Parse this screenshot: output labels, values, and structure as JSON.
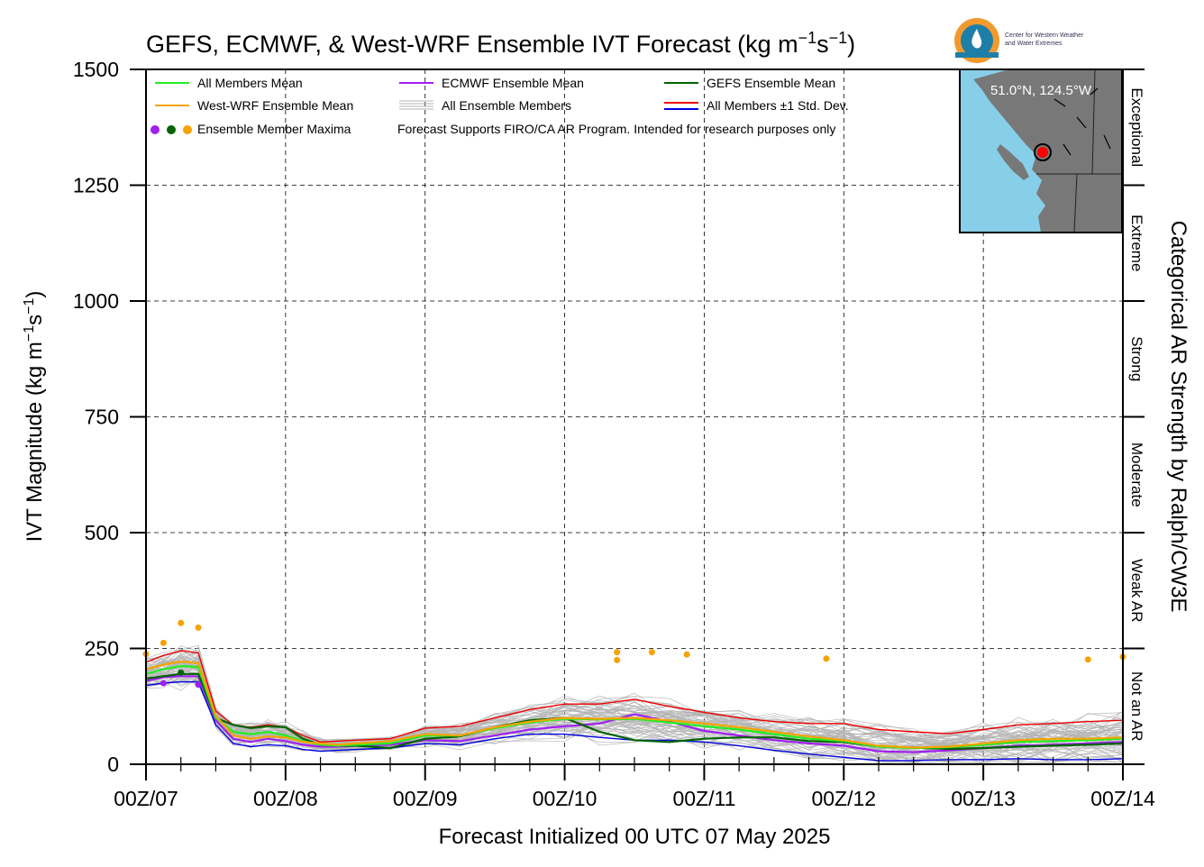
{
  "title_prefix": "GEFS, ECMWF, & West-WRF Ensemble IVT Forecast (kg m",
  "title_sup1": "−1",
  "title_mid": "s",
  "title_sup2": "−1",
  "title_suffix": ")",
  "logo": {
    "line1": "Center for Western Weather",
    "line2": "and Water Extremes"
  },
  "map": {
    "coords": "51.0°N, 124.5°W",
    "water_color": "#87cfe9",
    "land_color": "#787878",
    "marker_color": "#ff0000"
  },
  "note": "Forecast Supports FIRO/CA AR Program. Intended for research purposes only",
  "colors": {
    "all_mean": "#22ee22",
    "westwrf_mean": "#f5a300",
    "ecmwf_mean": "#a020f0",
    "gefs_mean": "#006400",
    "members": "#b4b4b4",
    "std_upper": "#ee0000",
    "std_lower": "#0000dd",
    "max_ecmwf": "#a020f0",
    "max_gefs": "#006400",
    "max_westwrf": "#f5a300"
  },
  "chart_data": {
    "type": "line",
    "xlabel": "Forecast Initialized 00 UTC 07 May 2025",
    "ylabel_prefix": "IVT Magnitude (kg m",
    "ylabel_sup1": "−1",
    "ylabel_mid": "s",
    "ylabel_sup2": "−1",
    "ylabel_suffix": ")",
    "right_axis_label": "Categorical AR Strength by Ralph/CW3E",
    "xlim": [
      0,
      168
    ],
    "ylim": [
      0,
      1500
    ],
    "x_ticks": [
      {
        "hour": 0,
        "label": "00Z/07"
      },
      {
        "hour": 24,
        "label": "00Z/08"
      },
      {
        "hour": 48,
        "label": "00Z/09"
      },
      {
        "hour": 72,
        "label": "00Z/10"
      },
      {
        "hour": 96,
        "label": "00Z/11"
      },
      {
        "hour": 120,
        "label": "00Z/12"
      },
      {
        "hour": 144,
        "label": "00Z/13"
      },
      {
        "hour": 168,
        "label": "00Z/14"
      }
    ],
    "y_ticks": [
      0,
      250,
      500,
      750,
      1000,
      1250,
      1500
    ],
    "grid": true,
    "legend_position": "top-left",
    "legend": [
      {
        "key": "all_mean",
        "label": "All Members Mean"
      },
      {
        "key": "ecmwf_mean",
        "label": "ECMWF Ensemble Mean"
      },
      {
        "key": "gefs_mean",
        "label": "GEFS Ensemble Mean"
      },
      {
        "key": "westwrf_mean",
        "label": "West-WRF Ensemble Mean"
      },
      {
        "key": "members",
        "label": "All Ensemble Members"
      },
      {
        "key": "std",
        "label": "All Members ±1 Std. Dev."
      },
      {
        "key": "maxima",
        "label": "Ensemble Member Maxima"
      }
    ],
    "categories_right": [
      {
        "label": "Not an AR",
        "range": [
          0,
          250
        ]
      },
      {
        "label": "Weak AR",
        "range": [
          250,
          500
        ]
      },
      {
        "label": "Moderate",
        "range": [
          500,
          750
        ]
      },
      {
        "label": "Strong",
        "range": [
          750,
          1000
        ]
      },
      {
        "label": "Extreme",
        "range": [
          1000,
          1250
        ]
      },
      {
        "label": "Exceptional",
        "range": [
          1250,
          1500
        ]
      }
    ],
    "series": [
      {
        "name": "All Members Mean",
        "key": "all_mean",
        "x": [
          0,
          3,
          6,
          9,
          12,
          15,
          18,
          21,
          24,
          27,
          30,
          33,
          36,
          42,
          48,
          54,
          60,
          66,
          72,
          78,
          84,
          90,
          96,
          102,
          108,
          114,
          120,
          126,
          132,
          138,
          144,
          150,
          156,
          162,
          168
        ],
        "y": [
          195,
          205,
          212,
          210,
          100,
          70,
          65,
          70,
          62,
          50,
          42,
          40,
          42,
          45,
          62,
          62,
          78,
          90,
          98,
          97,
          98,
          90,
          82,
          75,
          65,
          55,
          50,
          38,
          35,
          37,
          42,
          48,
          50,
          52,
          55
        ]
      },
      {
        "name": "ECMWF Ensemble Mean",
        "key": "ecmwf_mean",
        "x": [
          0,
          3,
          6,
          9,
          12,
          15,
          18,
          21,
          24,
          27,
          30,
          33,
          36,
          42,
          48,
          54,
          60,
          66,
          72,
          78,
          84,
          90,
          96,
          102,
          108,
          114,
          120,
          126,
          132,
          138,
          144,
          150,
          156,
          162,
          168
        ],
        "y": [
          180,
          188,
          190,
          190,
          95,
          55,
          48,
          55,
          50,
          42,
          38,
          38,
          40,
          42,
          52,
          50,
          62,
          75,
          82,
          88,
          108,
          92,
          72,
          62,
          52,
          45,
          40,
          28,
          26,
          30,
          35,
          40,
          42,
          45,
          48
        ]
      },
      {
        "name": "GEFS Ensemble Mean",
        "key": "gefs_mean",
        "x": [
          0,
          3,
          6,
          9,
          12,
          15,
          18,
          21,
          24,
          27,
          30,
          33,
          36,
          42,
          48,
          54,
          60,
          66,
          72,
          78,
          84,
          90,
          96,
          102,
          108,
          114,
          120,
          126,
          132,
          138,
          144,
          150,
          156,
          162,
          168
        ],
        "y": [
          185,
          190,
          195,
          195,
          100,
          85,
          78,
          82,
          80,
          55,
          42,
          40,
          40,
          35,
          55,
          60,
          80,
          95,
          100,
          70,
          52,
          48,
          55,
          58,
          58,
          50,
          48,
          38,
          36,
          33,
          35,
          38,
          40,
          42,
          45
        ]
      },
      {
        "name": "West-WRF Ensemble Mean",
        "key": "westwrf_mean",
        "x": [
          0,
          3,
          6,
          9,
          12,
          15,
          18,
          21,
          24,
          27,
          30,
          33,
          36,
          42,
          48,
          54,
          60,
          66,
          72,
          78,
          84,
          90,
          96,
          102,
          108,
          114,
          120,
          126,
          132,
          138,
          144,
          150,
          156,
          162,
          168
        ],
        "y": [
          205,
          215,
          222,
          218,
          105,
          62,
          55,
          60,
          58,
          48,
          45,
          42,
          45,
          50,
          65,
          62,
          80,
          92,
          100,
          98,
          100,
          95,
          88,
          80,
          70,
          60,
          52,
          40,
          36,
          38,
          45,
          52,
          55,
          55,
          58
        ]
      },
      {
        "name": "All Members +1 Std. Dev.",
        "key": "std_upper",
        "x": [
          0,
          3,
          6,
          9,
          12,
          15,
          18,
          21,
          24,
          27,
          30,
          33,
          36,
          42,
          48,
          54,
          60,
          66,
          72,
          78,
          84,
          90,
          96,
          102,
          108,
          114,
          120,
          126,
          132,
          138,
          144,
          150,
          156,
          162,
          168
        ],
        "y": [
          220,
          235,
          245,
          240,
          115,
          85,
          80,
          85,
          80,
          62,
          48,
          50,
          52,
          55,
          78,
          82,
          100,
          118,
          130,
          130,
          140,
          125,
          112,
          100,
          92,
          88,
          88,
          75,
          70,
          66,
          75,
          85,
          88,
          92,
          95
        ]
      },
      {
        "name": "All Members -1 Std. Dev.",
        "key": "std_lower",
        "x": [
          0,
          3,
          6,
          9,
          12,
          15,
          18,
          21,
          24,
          27,
          30,
          33,
          36,
          42,
          48,
          54,
          60,
          66,
          72,
          78,
          84,
          90,
          96,
          102,
          108,
          114,
          120,
          126,
          132,
          138,
          144,
          150,
          156,
          162,
          168
        ],
        "y": [
          170,
          175,
          178,
          178,
          85,
          45,
          38,
          42,
          40,
          32,
          28,
          30,
          32,
          35,
          45,
          42,
          55,
          65,
          65,
          58,
          52,
          52,
          48,
          40,
          30,
          22,
          15,
          8,
          8,
          10,
          10,
          12,
          10,
          10,
          12
        ]
      }
    ],
    "maxima_points": [
      {
        "hour": 0,
        "value": 238,
        "key": "max_westwrf"
      },
      {
        "hour": 3,
        "value": 262,
        "key": "max_westwrf"
      },
      {
        "hour": 6,
        "value": 305,
        "key": "max_westwrf"
      },
      {
        "hour": 9,
        "value": 295,
        "key": "max_westwrf"
      },
      {
        "hour": 3,
        "value": 175,
        "key": "max_ecmwf"
      },
      {
        "hour": 9,
        "value": 172,
        "key": "max_ecmwf"
      },
      {
        "hour": 6,
        "value": 198,
        "key": "max_gefs"
      },
      {
        "hour": 81,
        "value": 242,
        "key": "max_westwrf"
      },
      {
        "hour": 81,
        "value": 225,
        "key": "max_westwrf"
      },
      {
        "hour": 87,
        "value": 242,
        "key": "max_westwrf"
      },
      {
        "hour": 93,
        "value": 237,
        "key": "max_westwrf"
      },
      {
        "hour": 117,
        "value": 228,
        "key": "max_westwrf"
      },
      {
        "hour": 162,
        "value": 226,
        "key": "max_westwrf"
      },
      {
        "hour": 168,
        "value": 232,
        "key": "max_westwrf"
      }
    ]
  }
}
